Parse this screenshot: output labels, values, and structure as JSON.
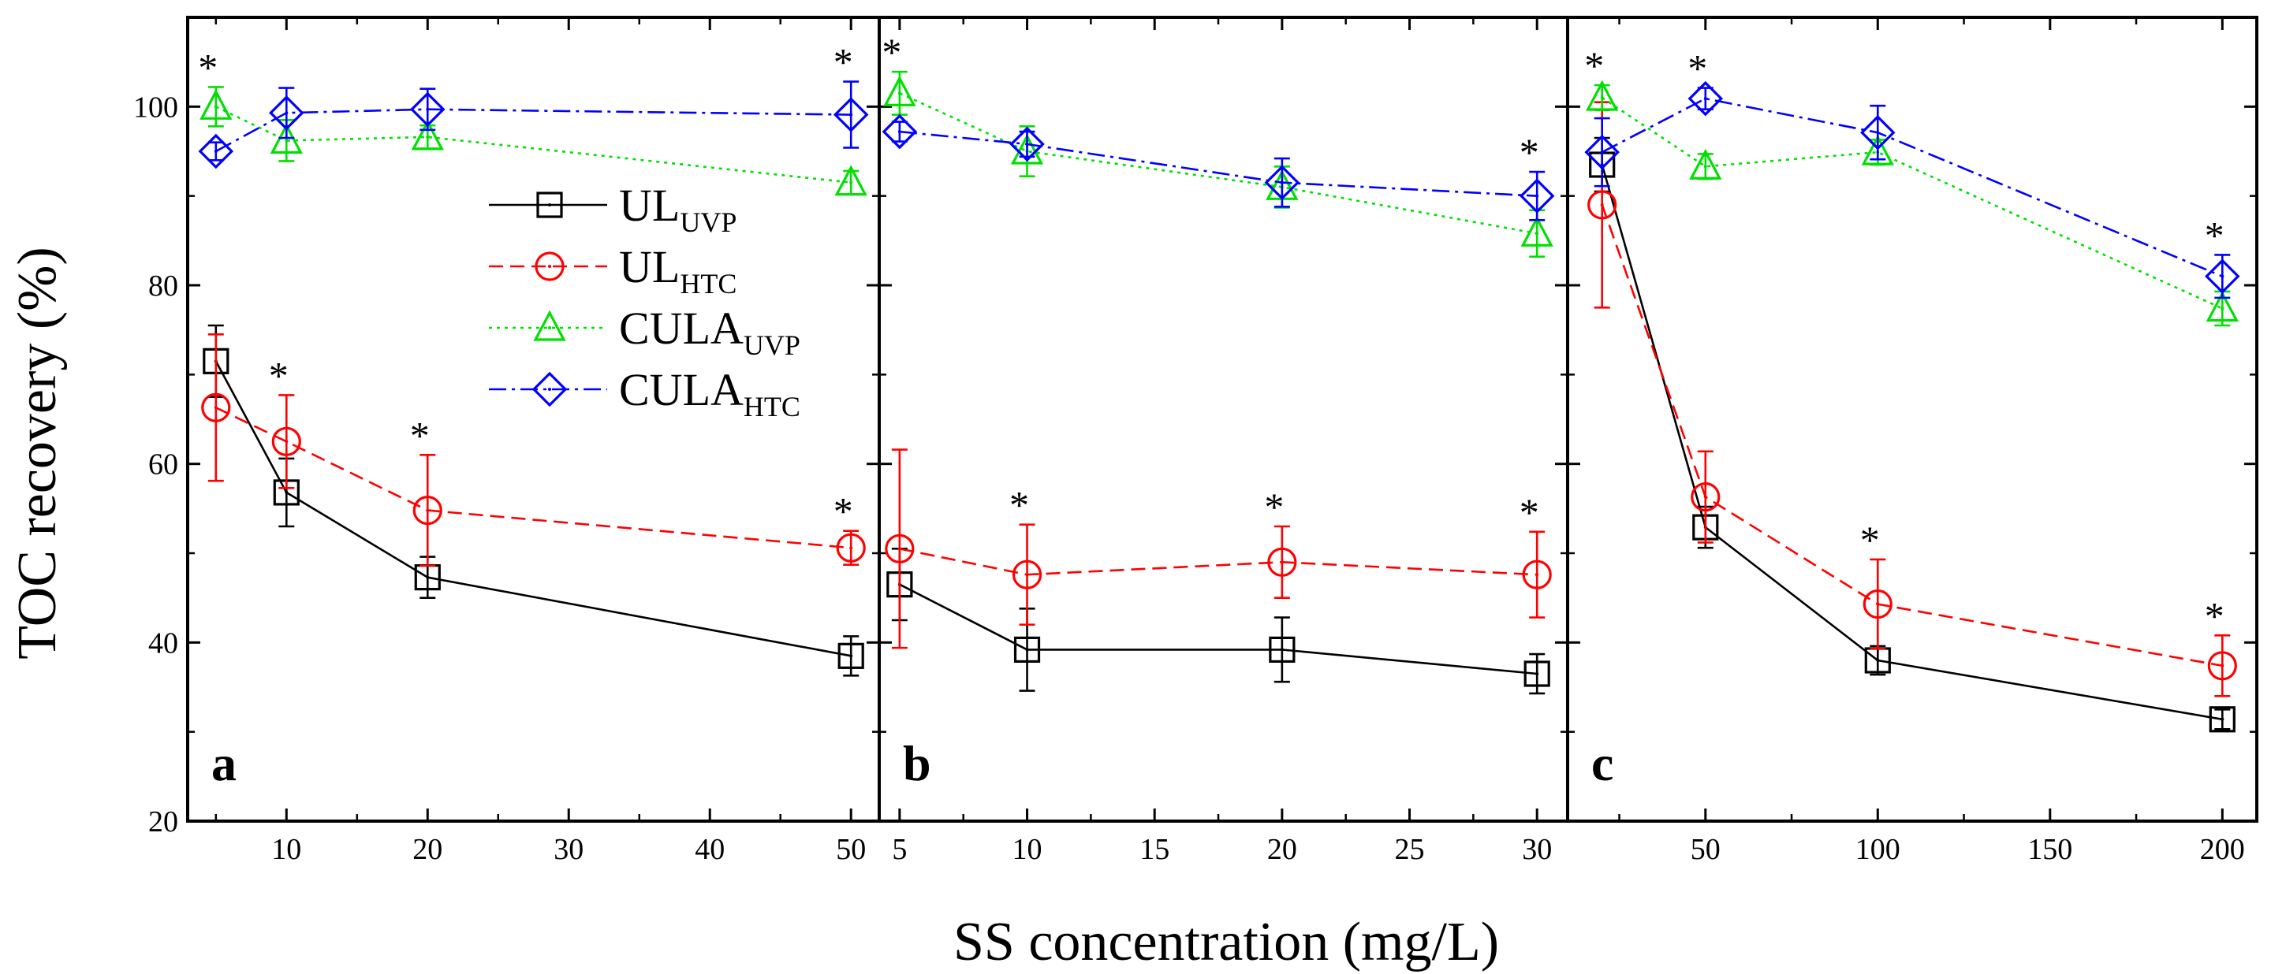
{
  "figure": {
    "ylabel": "TOC recovery (%)",
    "xlabel": "SS concentration (mg/L)",
    "ylim": [
      20,
      110
    ],
    "yticks": [
      20,
      40,
      60,
      80,
      100
    ],
    "significance_marker": "*"
  },
  "legend": {
    "placement": "panel a, center-right",
    "entries": [
      {
        "series_id": "UL_UVP",
        "base": "UL",
        "sub": "UVP"
      },
      {
        "series_id": "UL_HTC",
        "base": "UL",
        "sub": "HTC"
      },
      {
        "series_id": "CULA_UVP",
        "base": "CULA",
        "sub": "UVP"
      },
      {
        "series_id": "CULA_HTC",
        "base": "CULA",
        "sub": "HTC"
      }
    ]
  },
  "series_styles": {
    "UL_UVP": {
      "color": "#000000",
      "marker": "square",
      "dash": "solid"
    },
    "UL_HTC": {
      "color": "#ff0000",
      "marker": "circle",
      "dash": "dashed"
    },
    "CULA_UVP": {
      "color": "#00e000",
      "marker": "triangle",
      "dash": "dotted"
    },
    "CULA_HTC": {
      "color": "#0000ff",
      "marker": "diamond",
      "dash": "dashdot"
    }
  },
  "chart_data": [
    {
      "type": "line",
      "panel_label": "a",
      "xlim": [
        3,
        52
      ],
      "xticks": [
        10,
        20,
        30,
        40,
        50
      ],
      "xminor": [
        5,
        15,
        25,
        35,
        45
      ],
      "x": [
        5,
        10,
        20,
        50
      ],
      "series": [
        {
          "name": "UL_UVP",
          "values": [
            71.5,
            56.8,
            47.3,
            38.5
          ],
          "errors": [
            4,
            3.8,
            2.3,
            2.2
          ],
          "stars": [
            false,
            false,
            false,
            false
          ]
        },
        {
          "name": "UL_HTC",
          "values": [
            66.3,
            62.5,
            54.8,
            50.6
          ],
          "errors": [
            8.2,
            5.2,
            6.2,
            1.9
          ],
          "stars": [
            false,
            true,
            true,
            true
          ]
        },
        {
          "name": "CULA_UVP",
          "values": [
            100.0,
            96.2,
            96.6,
            91.5
          ],
          "errors": [
            2.2,
            2.3,
            1.3,
            1.3
          ],
          "stars": [
            true,
            false,
            false,
            false
          ]
        },
        {
          "name": "CULA_HTC",
          "values": [
            95.0,
            99.3,
            99.7,
            99.1
          ],
          "errors": [
            1,
            2.8,
            2.3,
            3.7
          ],
          "stars": [
            false,
            false,
            false,
            true
          ]
        }
      ]
    },
    {
      "type": "line",
      "panel_label": "b",
      "xlim": [
        4.2,
        31.2
      ],
      "xticks": [
        5,
        10,
        15,
        20,
        25,
        30
      ],
      "xminor": [
        7.5,
        12.5,
        17.5,
        22.5,
        27.5
      ],
      "x": [
        5,
        10,
        20,
        30
      ],
      "series": [
        {
          "name": "UL_UVP",
          "values": [
            46.5,
            39.2,
            39.2,
            36.5
          ],
          "errors": [
            4,
            4.6,
            3.6,
            2.2
          ],
          "stars": [
            false,
            false,
            false,
            false
          ]
        },
        {
          "name": "UL_HTC",
          "values": [
            50.5,
            47.6,
            49.0,
            47.6
          ],
          "errors": [
            11.1,
            5.6,
            4,
            4.8
          ],
          "stars": [
            false,
            true,
            true,
            true
          ]
        },
        {
          "name": "CULA_UVP",
          "values": [
            101.5,
            95.0,
            91.0,
            85.8
          ],
          "errors": [
            2.4,
            2.8,
            2.3,
            2.6
          ],
          "stars": [
            true,
            false,
            false,
            false
          ]
        },
        {
          "name": "CULA_HTC",
          "values": [
            97.2,
            95.8,
            91.5,
            90.0
          ],
          "errors": [
            1.1,
            1.4,
            2.7,
            2.7
          ],
          "stars": [
            false,
            false,
            false,
            true
          ]
        }
      ]
    },
    {
      "type": "line",
      "panel_label": "c",
      "xlim": [
        10,
        210
      ],
      "xticks": [
        50,
        100,
        150,
        200
      ],
      "xminor": [
        25,
        75,
        125,
        175
      ],
      "x": [
        20,
        50,
        100,
        200
      ],
      "series": [
        {
          "name": "UL_UVP",
          "values": [
            93.5,
            52.9,
            38.0,
            31.4
          ],
          "errors": [
            3,
            2.3,
            1.6,
            1.1
          ],
          "stars": [
            false,
            false,
            false,
            false
          ]
        },
        {
          "name": "UL_HTC",
          "values": [
            89.0,
            56.3,
            44.3,
            37.4
          ],
          "errors": [
            11.5,
            5.1,
            5,
            3.4
          ],
          "stars": [
            false,
            false,
            true,
            true
          ]
        },
        {
          "name": "CULA_UVP",
          "values": [
            101.0,
            93.3,
            94.9,
            77.4
          ],
          "errors": [
            1.4,
            1.4,
            1.4,
            1.9
          ],
          "stars": [
            true,
            false,
            false,
            false
          ]
        },
        {
          "name": "CULA_HTC",
          "values": [
            94.9,
            100.9,
            97.1,
            81.0
          ],
          "errors": [
            3.8,
            1.2,
            3,
            2.4
          ],
          "stars": [
            false,
            true,
            false,
            true
          ]
        }
      ]
    }
  ]
}
